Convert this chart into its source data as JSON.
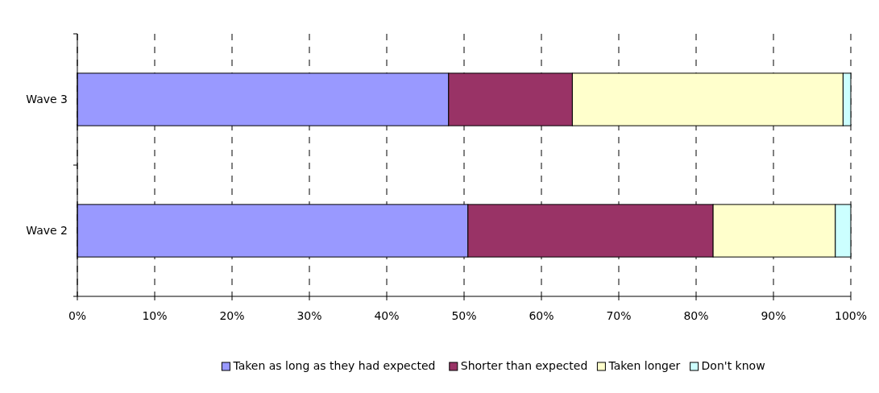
{
  "chart_data": {
    "type": "bar",
    "orientation": "horizontal",
    "stacked": true,
    "categories": [
      "Wave 3",
      "Wave 2"
    ],
    "series": [
      {
        "name": "Taken as long as they had expected",
        "color": "#9999ff",
        "values": [
          48,
          50.5
        ]
      },
      {
        "name": "Shorter than expected",
        "color": "#993366",
        "values": [
          16,
          31.7
        ]
      },
      {
        "name": "Taken longer",
        "color": "#ffffcc",
        "values": [
          35,
          15.8
        ]
      },
      {
        "name": "Don't know",
        "color": "#ccffff",
        "values": [
          1,
          2
        ]
      }
    ],
    "xlim": [
      0,
      100
    ],
    "xticks": [
      {
        "value": 0,
        "label": "0%"
      },
      {
        "value": 10,
        "label": "10%"
      },
      {
        "value": 20,
        "label": "20%"
      },
      {
        "value": 30,
        "label": "30%"
      },
      {
        "value": 40,
        "label": "40%"
      },
      {
        "value": 50,
        "label": "50%"
      },
      {
        "value": 60,
        "label": "60%"
      },
      {
        "value": 70,
        "label": "70%"
      },
      {
        "value": 80,
        "label": "80%"
      },
      {
        "value": 90,
        "label": "90%"
      },
      {
        "value": 100,
        "label": "100%"
      }
    ],
    "grid": "x",
    "legend": "bottom"
  }
}
